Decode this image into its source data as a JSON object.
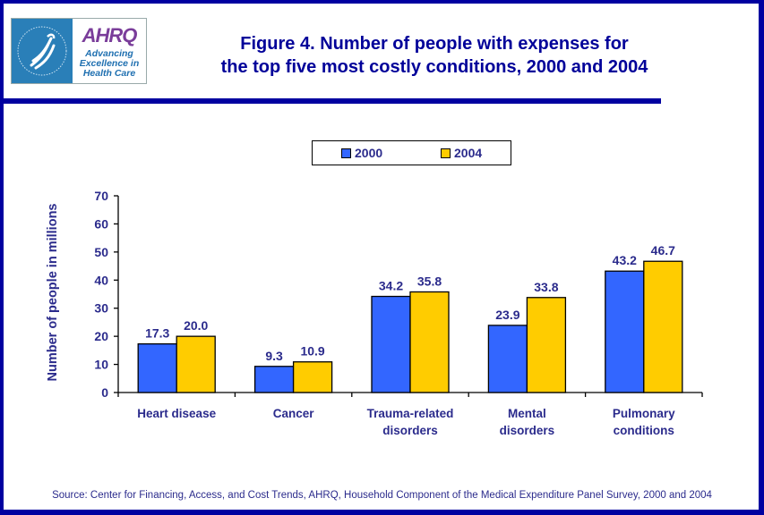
{
  "header": {
    "logo": {
      "agency_seal": "Department of Health & Human Services USA",
      "brand": "AHRQ",
      "tagline": [
        "Advancing",
        "Excellence in",
        "Health Care"
      ]
    },
    "title_lines": [
      "Figure 4. Number of people with expenses for",
      "the top five most costly conditions, 2000 and 2004"
    ]
  },
  "colors": {
    "frame": "#0000a0",
    "text": "#2b2b8c",
    "title": "#000099",
    "series_2000": "#3366ff",
    "series_2004": "#ffcc00"
  },
  "chart_data": {
    "type": "bar",
    "title": "Figure 4. Number of people with expenses for the top five most costly conditions, 2000 and 2004",
    "xlabel": "",
    "ylabel": "Number of people in millions",
    "ylim": [
      0,
      70
    ],
    "yticks": [
      0,
      10,
      20,
      30,
      40,
      50,
      60,
      70
    ],
    "grid": false,
    "legend_position": "top-center",
    "categories": [
      [
        "Heart disease"
      ],
      [
        "Cancer"
      ],
      [
        "Trauma-related",
        "disorders"
      ],
      [
        "Mental",
        "disorders"
      ],
      [
        "Pulmonary",
        "conditions"
      ]
    ],
    "series": [
      {
        "name": "2000",
        "color": "#3366ff",
        "values": [
          17.3,
          9.3,
          34.2,
          23.9,
          43.2
        ],
        "labels": [
          "17.3",
          "9.3",
          "34.2",
          "23.9",
          "43.2"
        ]
      },
      {
        "name": "2004",
        "color": "#ffcc00",
        "values": [
          20.0,
          10.9,
          35.8,
          33.8,
          46.7
        ],
        "labels": [
          "20.0",
          "10.9",
          "35.8",
          "33.8",
          "46.7"
        ]
      }
    ]
  },
  "legend": {
    "items": [
      "2000",
      "2004"
    ]
  },
  "source": "Source: Center for Financing, Access, and Cost Trends, AHRQ, Household Component of the Medical Expenditure Panel Survey, 2000 and 2004"
}
